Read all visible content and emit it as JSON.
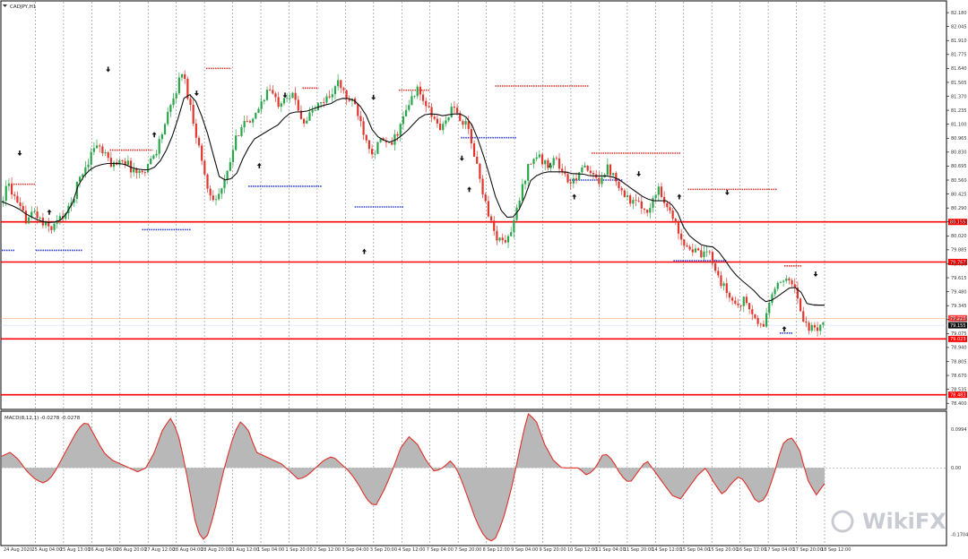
{
  "window": {
    "symbol_label": "CADJPY,H1",
    "macd_label": "MACD(8,12,1) -0.0278 -0.0278",
    "watermark_text": "WikiFX"
  },
  "colors": {
    "up_candle": "#2aa64a",
    "down_candle": "#e0362c",
    "moving_line": "#111111",
    "horizontal_level": "#ff0000",
    "resistance_dash": "#e0302a",
    "support_dash": "#2a3bd6",
    "macd_fill": "#b8b8b8",
    "macd_signal": "#e0302a",
    "grid": "#888888"
  },
  "chart_data": [
    {
      "type": "candlestick",
      "panel": "price",
      "title": "CADJPY,H1",
      "ylim": [
        78.35,
        82.25
      ],
      "price_ticks": [
        "82.180",
        "82.045",
        "81.910",
        "81.775",
        "81.640",
        "81.505",
        "81.370",
        "81.235",
        "81.100",
        "80.965",
        "80.830",
        "80.695",
        "80.560",
        "80.425",
        "80.290",
        "80.155",
        "80.020",
        "79.885",
        "79.750",
        "79.615",
        "79.480",
        "79.345",
        "79.210",
        "79.075",
        "78.940",
        "78.805",
        "78.670",
        "78.535",
        "78.400"
      ],
      "x_ticks": [
        "24 Aug 2020",
        "25 Aug 04:00",
        "25 Aug 13:00",
        "26 Aug 04:00",
        "26 Aug 20:00",
        "27 Aug 12:00",
        "28 Aug 04:00",
        "28 Aug 20:00",
        "31 Aug 12:00",
        "1 Sep 04:00",
        "1 Sep 20:00",
        "2 Sep 12:00",
        "3 Sep 04:00",
        "3 Sep 20:00",
        "4 Sep 12:00",
        "7 Sep 04:00",
        "7 Sep 20:00",
        "8 Sep 12:00",
        "9 Sep 04:00",
        "9 Sep 20:00",
        "10 Sep 12:00",
        "11 Sep 04:00",
        "11 Sep 20:00",
        "14 Sep 12:00",
        "15 Sep 04:00",
        "15 Sep 20:00",
        "16 Sep 12:00",
        "17 Sep 04:00",
        "17 Sep 20:00",
        "18 Sep 12:00"
      ],
      "horizontal_levels": [
        {
          "price": 80.155,
          "label": "80.155"
        },
        {
          "price": 79.767,
          "label": "79.767"
        },
        {
          "price": 79.023,
          "label": "79.023"
        },
        {
          "price": 78.483,
          "label": "78.483"
        }
      ],
      "bid_label": "79.223",
      "ask_label": "79.155",
      "path": [
        80.35,
        80.52,
        80.3,
        80.18,
        80.25,
        80.12,
        80.1,
        80.2,
        80.28,
        80.55,
        80.72,
        80.92,
        80.8,
        80.7,
        80.78,
        80.68,
        80.62,
        80.7,
        80.85,
        81.1,
        81.35,
        81.62,
        81.25,
        80.85,
        80.45,
        80.38,
        80.55,
        80.9,
        81.15,
        81.08,
        81.3,
        81.45,
        81.3,
        81.4,
        81.35,
        81.12,
        81.22,
        81.3,
        81.38,
        81.5,
        81.35,
        81.28,
        81.02,
        80.82,
        80.95,
        80.88,
        81.05,
        81.25,
        81.45,
        81.3,
        81.15,
        81.05,
        81.25,
        81.18,
        81.05,
        80.7,
        80.35,
        80.05,
        79.95,
        80.05,
        80.4,
        80.72,
        80.8,
        80.7,
        80.78,
        80.62,
        80.5,
        80.7,
        80.62,
        80.55,
        80.68,
        80.6,
        80.42,
        80.35,
        80.3,
        80.28,
        80.5,
        80.3,
        80.12,
        79.95,
        79.88,
        79.82,
        79.85,
        79.6,
        79.45,
        79.35,
        79.4,
        79.22,
        79.12,
        79.45,
        79.55,
        79.65,
        79.42,
        79.15,
        79.1,
        79.2
      ],
      "moving_line": [
        80.35,
        80.32,
        80.28,
        80.22,
        80.18,
        80.15,
        80.15,
        80.18,
        80.3,
        80.55,
        80.65,
        80.7,
        80.72,
        80.72,
        80.72,
        80.68,
        80.66,
        80.66,
        80.7,
        80.85,
        81.05,
        81.35,
        81.4,
        81.2,
        80.95,
        80.6,
        80.55,
        80.6,
        80.8,
        80.95,
        81.0,
        81.05,
        81.1,
        81.2,
        81.22,
        81.22,
        81.25,
        81.28,
        81.3,
        81.35,
        81.35,
        81.32,
        81.2,
        81.0,
        80.95,
        80.92,
        80.98,
        81.05,
        81.15,
        81.2,
        81.2,
        81.18,
        81.2,
        81.2,
        81.15,
        80.95,
        80.7,
        80.4,
        80.2,
        80.2,
        80.3,
        80.55,
        80.62,
        80.64,
        80.64,
        80.64,
        80.62,
        80.62,
        80.6,
        80.6,
        80.6,
        80.58,
        80.52,
        80.46,
        80.4,
        80.36,
        80.36,
        80.36,
        80.25,
        80.05,
        79.98,
        79.92,
        79.92,
        79.85,
        79.72,
        79.62,
        79.55,
        79.48,
        79.38,
        79.4,
        79.46,
        79.52,
        79.52,
        79.36,
        79.35,
        79.35
      ],
      "resistance_markers": [
        {
          "price": 80.52
        },
        {
          "price": 80.85
        },
        {
          "price": 81.64
        },
        {
          "price": 81.45
        },
        {
          "price": 81.43
        },
        {
          "price": 81.47
        },
        {
          "price": 80.82
        },
        {
          "price": 80.47
        },
        {
          "price": 79.73
        }
      ],
      "support_markers": [
        {
          "price": 79.88
        },
        {
          "price": 80.08
        },
        {
          "price": 80.5
        },
        {
          "price": 80.3
        },
        {
          "price": 80.97
        },
        {
          "price": 80.56
        },
        {
          "price": 79.78
        },
        {
          "price": 79.08
        }
      ],
      "up_arrows": [
        {
          "price": 80.25
        },
        {
          "price": 81.0
        },
        {
          "price": 80.7
        },
        {
          "price": 79.87
        },
        {
          "price": 80.47
        },
        {
          "price": 80.4
        },
        {
          "price": 80.4
        },
        {
          "price": 79.12
        }
      ],
      "down_arrows": [
        {
          "price": 80.82
        },
        {
          "price": 81.63
        },
        {
          "price": 81.4
        },
        {
          "price": 81.38
        },
        {
          "price": 81.36
        },
        {
          "price": 80.77
        },
        {
          "price": 80.7
        },
        {
          "price": 80.62
        },
        {
          "price": 80.44
        },
        {
          "price": 79.65
        }
      ]
    },
    {
      "type": "area",
      "panel": "macd",
      "title": "MACD(8,12,1) -0.0278 -0.0278",
      "ylim": [
        -0.19,
        0.12
      ],
      "y_ticks": [
        "0.0994",
        "0.00",
        "-0.1704"
      ],
      "values": [
        0.03,
        0.04,
        0.02,
        -0.01,
        -0.03,
        -0.04,
        -0.02,
        0.02,
        0.06,
        0.1,
        0.12,
        0.08,
        0.04,
        0.02,
        0.01,
        0.0,
        -0.01,
        0.0,
        0.04,
        0.1,
        0.13,
        0.07,
        -0.04,
        -0.16,
        -0.19,
        -0.12,
        -0.02,
        0.06,
        0.12,
        0.1,
        0.04,
        0.03,
        0.02,
        0.01,
        -0.01,
        -0.03,
        -0.02,
        0.0,
        0.02,
        0.03,
        0.01,
        -0.01,
        -0.04,
        -0.08,
        -0.1,
        -0.06,
        -0.01,
        0.05,
        0.08,
        0.06,
        0.02,
        -0.01,
        0.0,
        0.02,
        -0.02,
        -0.08,
        -0.14,
        -0.18,
        -0.19,
        -0.14,
        -0.06,
        0.04,
        0.14,
        0.12,
        0.06,
        0.02,
        0.0,
        0.0,
        0.0,
        -0.02,
        0.0,
        0.04,
        0.02,
        -0.02,
        -0.04,
        -0.01,
        0.02,
        -0.01,
        -0.04,
        -0.07,
        -0.08,
        -0.05,
        -0.02,
        0.0,
        -0.04,
        -0.07,
        -0.04,
        -0.02,
        -0.05,
        -0.09,
        -0.08,
        -0.02,
        0.06,
        0.08,
        0.05,
        -0.03,
        -0.07,
        -0.04
      ]
    }
  ]
}
